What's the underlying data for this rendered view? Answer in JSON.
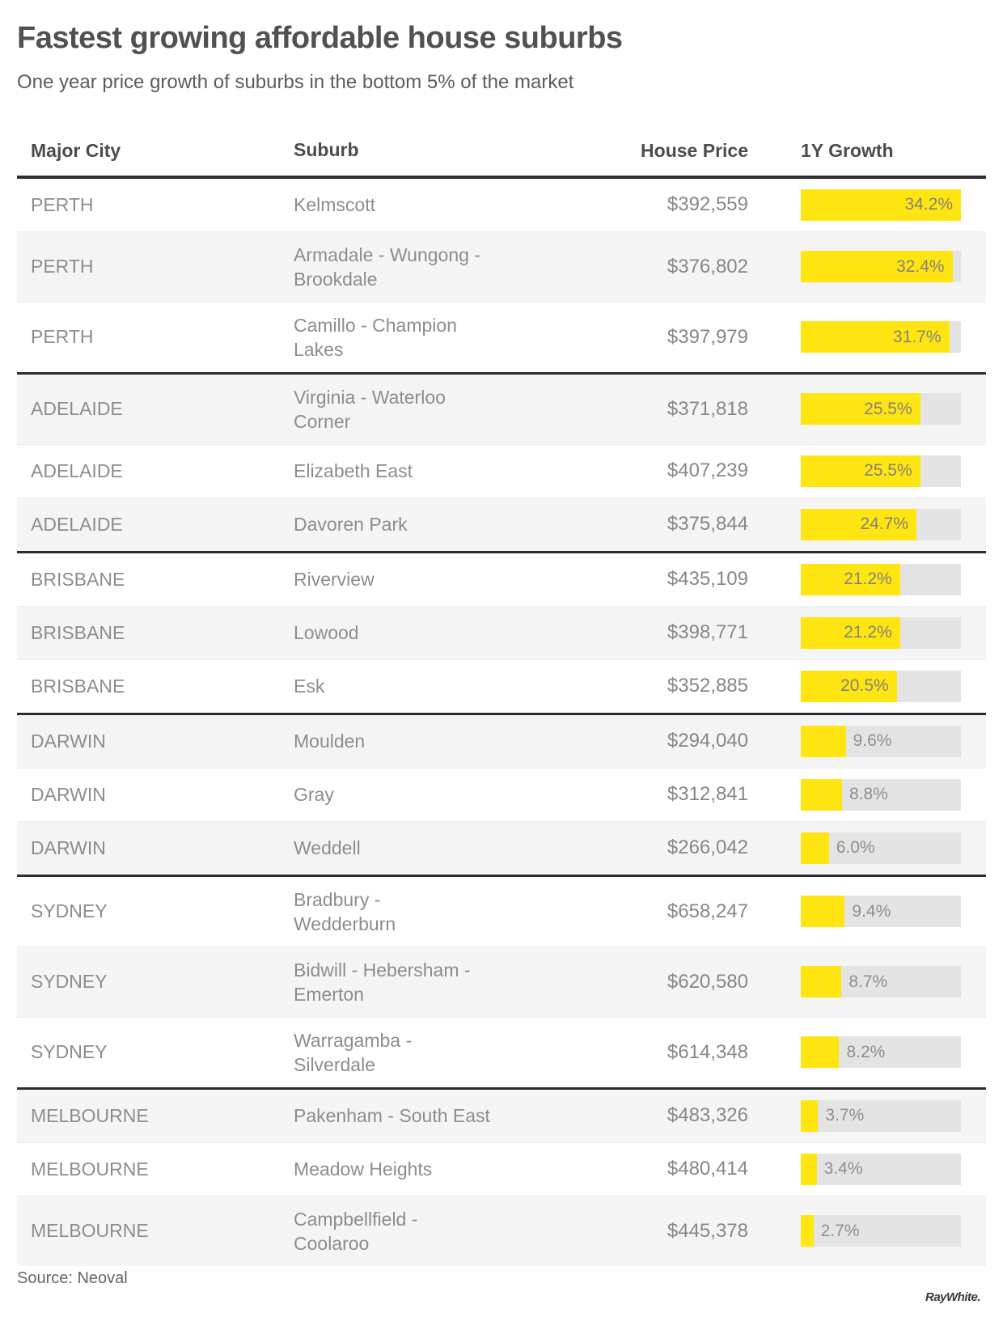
{
  "chart_data": {
    "type": "bar",
    "title": "Fastest growing affordable house suburbs",
    "subtitle": "One year price growth of suburbs in the bottom 5% of the market",
    "columns": [
      "Major City",
      "Suburb",
      "House Price",
      "1Y Growth"
    ],
    "bar_axis": {
      "min_pct": 0,
      "max_pct": 34.2
    },
    "colors": {
      "bar": "#FFE512",
      "track": "#E4E4E4",
      "separator": "#2D2D2D",
      "zebra": "#F5F5F5"
    },
    "rows": [
      {
        "city": "PERTH",
        "suburb": "Kelmscott",
        "price": "$392,559",
        "growth_pct": 34.2,
        "growth_label": "34.2%"
      },
      {
        "city": "PERTH",
        "suburb": "Armadale - Wungong -\nBrookdale",
        "price": "$376,802",
        "growth_pct": 32.4,
        "growth_label": "32.4%"
      },
      {
        "city": "PERTH",
        "suburb": "Camillo - Champion\nLakes",
        "price": "$397,979",
        "growth_pct": 31.7,
        "growth_label": "31.7%"
      },
      {
        "city": "ADELAIDE",
        "suburb": "Virginia - Waterloo\nCorner",
        "price": "$371,818",
        "growth_pct": 25.5,
        "growth_label": "25.5%"
      },
      {
        "city": "ADELAIDE",
        "suburb": "Elizabeth East",
        "price": "$407,239",
        "growth_pct": 25.5,
        "growth_label": "25.5%"
      },
      {
        "city": "ADELAIDE",
        "suburb": "Davoren Park",
        "price": "$375,844",
        "growth_pct": 24.7,
        "growth_label": "24.7%"
      },
      {
        "city": "BRISBANE",
        "suburb": "Riverview",
        "price": "$435,109",
        "growth_pct": 21.2,
        "growth_label": "21.2%"
      },
      {
        "city": "BRISBANE",
        "suburb": "Lowood",
        "price": "$398,771",
        "growth_pct": 21.2,
        "growth_label": "21.2%"
      },
      {
        "city": "BRISBANE",
        "suburb": "Esk",
        "price": "$352,885",
        "growth_pct": 20.5,
        "growth_label": "20.5%"
      },
      {
        "city": "DARWIN",
        "suburb": "Moulden",
        "price": "$294,040",
        "growth_pct": 9.6,
        "growth_label": "9.6%"
      },
      {
        "city": "DARWIN",
        "suburb": "Gray",
        "price": "$312,841",
        "growth_pct": 8.8,
        "growth_label": "8.8%"
      },
      {
        "city": "DARWIN",
        "suburb": "Weddell",
        "price": "$266,042",
        "growth_pct": 6.0,
        "growth_label": "6.0%"
      },
      {
        "city": "SYDNEY",
        "suburb": "Bradbury -\nWedderburn",
        "price": "$658,247",
        "growth_pct": 9.4,
        "growth_label": "9.4%"
      },
      {
        "city": "SYDNEY",
        "suburb": "Bidwill - Hebersham -\nEmerton",
        "price": "$620,580",
        "growth_pct": 8.7,
        "growth_label": "8.7%"
      },
      {
        "city": "SYDNEY",
        "suburb": "Warragamba -\nSilverdale",
        "price": "$614,348",
        "growth_pct": 8.2,
        "growth_label": "8.2%"
      },
      {
        "city": "MELBOURNE",
        "suburb": "Pakenham - South East",
        "price": "$483,326",
        "growth_pct": 3.7,
        "growth_label": "3.7%"
      },
      {
        "city": "MELBOURNE",
        "suburb": "Meadow Heights",
        "price": "$480,414",
        "growth_pct": 3.4,
        "growth_label": "3.4%"
      },
      {
        "city": "MELBOURNE",
        "suburb": "Campbellfield -\nCoolaroo",
        "price": "$445,378",
        "growth_pct": 2.7,
        "growth_label": "2.7%"
      }
    ]
  },
  "footer": {
    "source": "Source: Neoval",
    "logo_text": "RayWhite."
  }
}
